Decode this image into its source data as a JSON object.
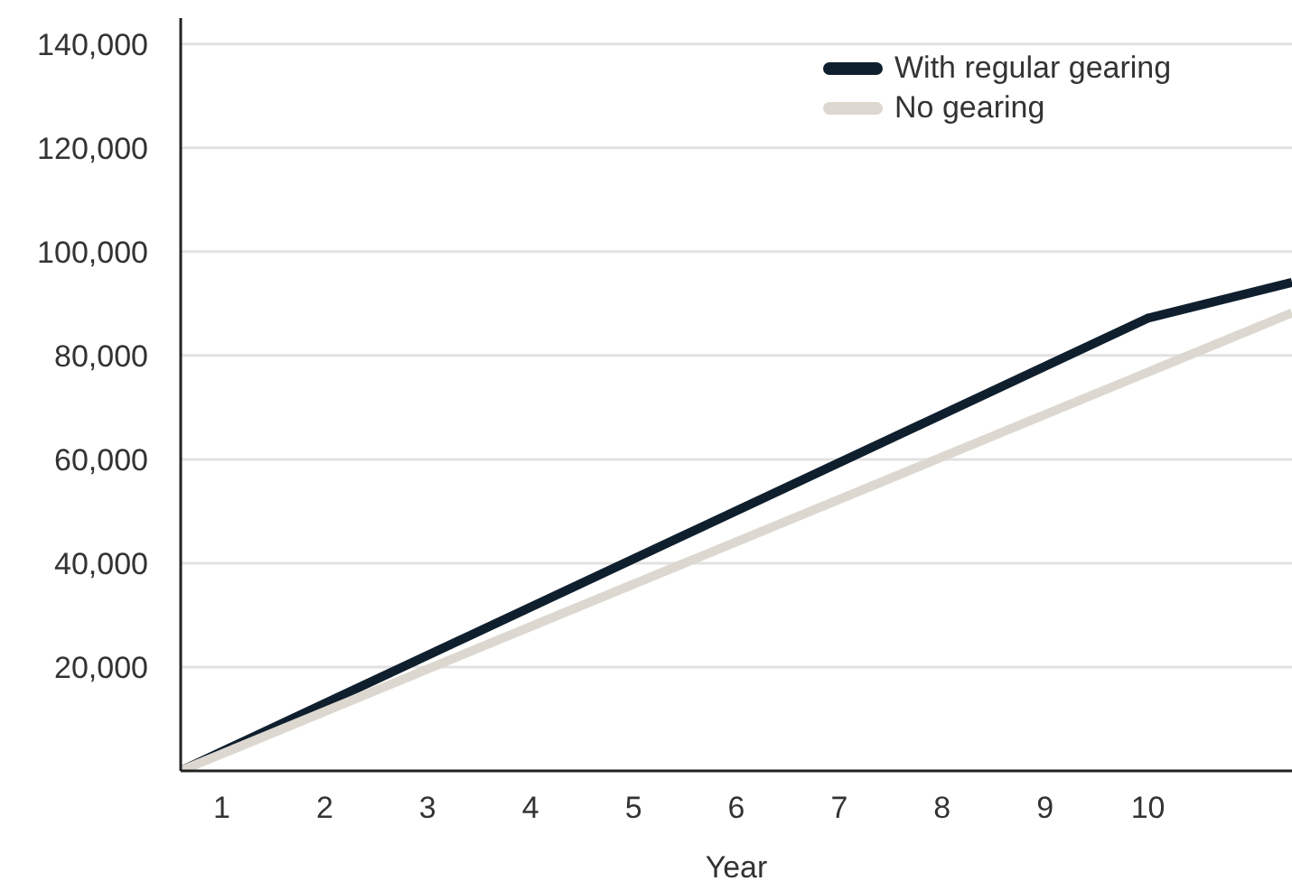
{
  "chart_data": {
    "type": "line",
    "xlabel": "Year",
    "xlim": [
      0.6,
      11.4
    ],
    "xticks": [
      1,
      2,
      3,
      4,
      5,
      6,
      7,
      8,
      9,
      10
    ],
    "ylim": [
      0,
      145000
    ],
    "yticks": [
      {
        "value": 20000,
        "label": "20,000"
      },
      {
        "value": 40000,
        "label": "40,000"
      },
      {
        "value": 60000,
        "label": "60,000"
      },
      {
        "value": 80000,
        "label": "80,000"
      },
      {
        "value": 100000,
        "label": "100,000"
      },
      {
        "value": 120000,
        "label": "120,000"
      },
      {
        "value": 140000,
        "label": "140,000"
      }
    ],
    "grid": "y",
    "legend": "top right",
    "marker": "none",
    "line_style": "solid",
    "x": [
      0.6,
      10,
      11.4
    ],
    "series": [
      {
        "name": "With regular gearing",
        "color": "#0f1f2e",
        "values": [
          0,
          87200,
          94100
        ]
      },
      {
        "name": "No gearing",
        "color": "#dcd8d0",
        "values": [
          0,
          76800,
          88200
        ]
      }
    ]
  }
}
